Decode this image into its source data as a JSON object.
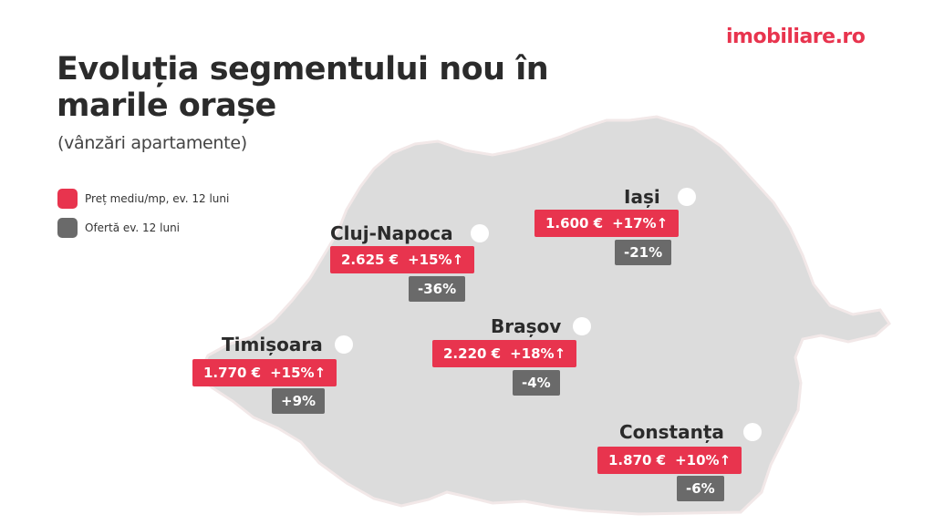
{
  "brand": {
    "logo": "imobiliare.ro",
    "accent": "#e8344e",
    "offer_color": "#6a6a6a",
    "map_color": "#dcdcdc"
  },
  "title": {
    "line1": "Evoluția segmentului nou în",
    "line2": "marile orașe"
  },
  "subtitle": "(vânzări apartamente)",
  "legend": [
    {
      "label": "Preț mediu/mp, ev. 12 luni",
      "color": "#e8344e"
    },
    {
      "label": "Ofertă ev. 12 luni",
      "color": "#6a6a6a"
    }
  ],
  "cities": {
    "iasi": {
      "name": "Iași",
      "price": "1.600 €",
      "change": "+17%↑",
      "offer": "-21%"
    },
    "cluj": {
      "name": "Cluj-Napoca",
      "price": "2.625 €",
      "change": "+15%↑",
      "offer": "-36%"
    },
    "brasov": {
      "name": "Brașov",
      "price": "2.220 €",
      "change": "+18%↑",
      "offer": "-4%"
    },
    "timisoara": {
      "name": "Timișoara",
      "price": "1.770 €",
      "change": "+15%↑",
      "offer": "+9%"
    },
    "constanta": {
      "name": "Constanța",
      "price": "1.870 €",
      "change": "+10%↑",
      "offer": "-6%"
    }
  }
}
